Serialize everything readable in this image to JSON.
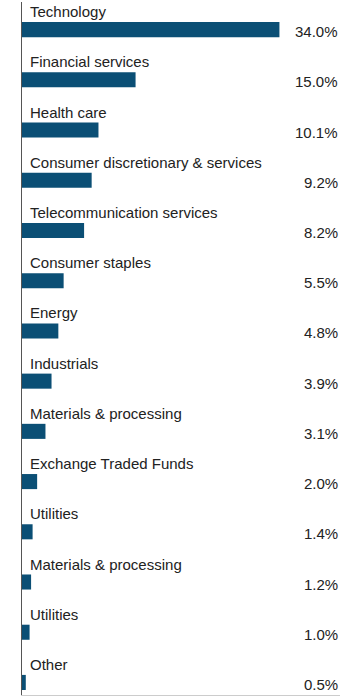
{
  "chart_data": {
    "type": "bar",
    "orientation": "horizontal",
    "categories": [
      "Technology",
      "Financial services",
      "Health care",
      "Consumer discretionary & services",
      "Telecommunication services",
      "Consumer staples",
      "Energy",
      "Industrials",
      "Materials & processing",
      "Exchange Traded Funds",
      "Utilities",
      "Materials & processing",
      "Utilities",
      "Other"
    ],
    "values": [
      34.0,
      15.0,
      10.1,
      9.2,
      8.2,
      5.5,
      4.8,
      3.9,
      3.1,
      2.0,
      1.4,
      1.2,
      1.0,
      0.5
    ],
    "value_labels": [
      "34.0%",
      "15.0%",
      "10.1%",
      "9.2%",
      "8.2%",
      "5.5%",
      "4.8%",
      "3.9%",
      "3.1%",
      "2.0%",
      "1.4%",
      "1.2%",
      "1.0%",
      "0.5%"
    ],
    "data_labels": true,
    "color": "#0b4f75",
    "xlim": [
      0,
      42
    ],
    "grid": false
  }
}
